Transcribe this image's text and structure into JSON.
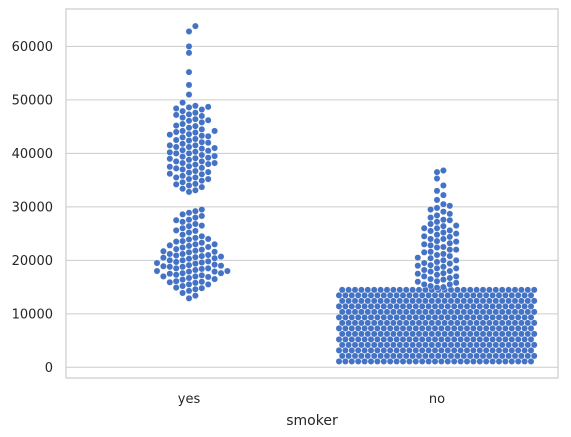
{
  "chart_data": {
    "type": "scatter",
    "subtype": "swarm",
    "title": "",
    "xlabel": "smoker",
    "ylabel": "",
    "categories": [
      "yes",
      "no"
    ],
    "ylim": [
      -2000,
      67000
    ],
    "yticks": [
      0,
      10000,
      20000,
      30000,
      40000,
      50000,
      60000
    ],
    "grid": "horizontal",
    "point_color": "#4472c4",
    "series": [
      {
        "category": "yes",
        "values": [
          63800,
          62800,
          60000,
          58800,
          55200,
          52800,
          51000,
          49500,
          48900,
          48700,
          48600,
          48400,
          48200,
          47900,
          47600,
          47300,
          47000,
          46700,
          46400,
          46100,
          45800,
          45500,
          45100,
          44800,
          44500,
          44200,
          43900,
          43600,
          43300,
          43000,
          42700,
          42400,
          42100,
          41800,
          41500,
          41200,
          40900,
          40600,
          40300,
          40000,
          39700,
          39400,
          39100,
          38800,
          38500,
          38200,
          37900,
          37600,
          37300,
          37000,
          36700,
          36400,
          36100,
          35800,
          35500,
          35200,
          34900,
          34600,
          34300,
          34000,
          33700,
          33400,
          33100,
          32800,
          44000,
          43500,
          42500,
          41500,
          40500,
          39500,
          38500,
          37500,
          36500,
          35500,
          41000,
          40000,
          39000,
          38000,
          42000,
          41200,
          40200,
          39200,
          38200,
          37200,
          36200,
          35200,
          34200,
          43200,
          44200,
          45200,
          46200,
          47200,
          29500,
          29200,
          28900,
          28600,
          28300,
          28000,
          27600,
          27200,
          26800,
          26400,
          26000,
          25600,
          25200,
          24800,
          24500,
          24200,
          23900,
          23600,
          23300,
          23000,
          22700,
          22400,
          22100,
          21800,
          21500,
          21200,
          20900,
          20600,
          20300,
          20000,
          19700,
          19400,
          19100,
          18800,
          18500,
          18200,
          17900,
          17600,
          17300,
          17000,
          16700,
          16400,
          16100,
          15800,
          15500,
          15200,
          14900,
          14600,
          14300,
          13900,
          13400,
          12900,
          22000,
          21600,
          21200,
          20800,
          20400,
          20000,
          19600,
          19200,
          18800,
          18400,
          18000,
          17600,
          17200,
          23500,
          23000,
          22500,
          21000,
          20500,
          19500,
          19000,
          18500,
          18000,
          17500,
          17000,
          16500,
          16000,
          15500,
          24000,
          22800,
          21700,
          20700,
          19800,
          18900,
          17900,
          16900,
          15900,
          14800,
          25500,
          26500,
          27500
        ],
        "note_count": "yes group ~270 points"
      },
      {
        "category": "no",
        "values": [
          36800,
          36500,
          35300,
          34000,
          33000,
          32200,
          31300,
          30500,
          30200,
          29800,
          29500,
          29100,
          28700,
          28400,
          28000,
          27600,
          27200,
          26800,
          26400,
          26000,
          25600,
          25200,
          24800,
          24400,
          24000,
          23600,
          23200,
          22800,
          22400,
          22000,
          21600,
          21200,
          20800,
          20400,
          20000,
          19700,
          19400,
          19100,
          18800,
          18500,
          18200,
          17900,
          17600,
          17300,
          17000,
          16700,
          16400,
          16100,
          15800,
          15500,
          15200,
          14900,
          26000,
          25000,
          24000,
          23000,
          22000,
          21000,
          20000,
          19000,
          18000,
          17000,
          16000,
          15000,
          27500,
          26500,
          25500,
          24500,
          23500,
          22500,
          21500,
          20500,
          19500,
          18500,
          17500,
          16500,
          15500
        ],
        "dense_band": {
          "from": 1100,
          "to": 14600
        }
      }
    ]
  }
}
